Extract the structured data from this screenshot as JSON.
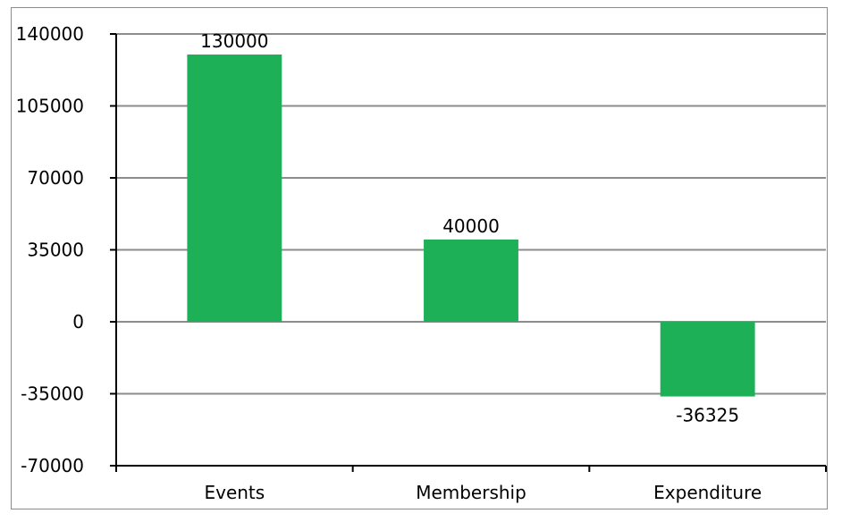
{
  "chart_data": {
    "type": "bar",
    "categories": [
      "Events",
      "Membership",
      "Expenditure"
    ],
    "values": [
      130000,
      40000,
      -36325
    ],
    "data_labels": [
      "130000",
      "40000",
      "-36325"
    ],
    "y_ticks": [
      -70000,
      -35000,
      0,
      35000,
      70000,
      105000,
      140000
    ],
    "y_tick_labels": [
      "-70000",
      "-35000",
      "0",
      "35000",
      "70000",
      "105000",
      "140000"
    ],
    "ylim": [
      -70000,
      140000
    ],
    "title": "",
    "xlabel": "",
    "ylabel": "",
    "grid": true,
    "legend": "none",
    "colors": {
      "bar": "#1eb057",
      "grid": "#8c8c8c",
      "axis": "#000000",
      "frame": "#8c8c8c"
    }
  }
}
